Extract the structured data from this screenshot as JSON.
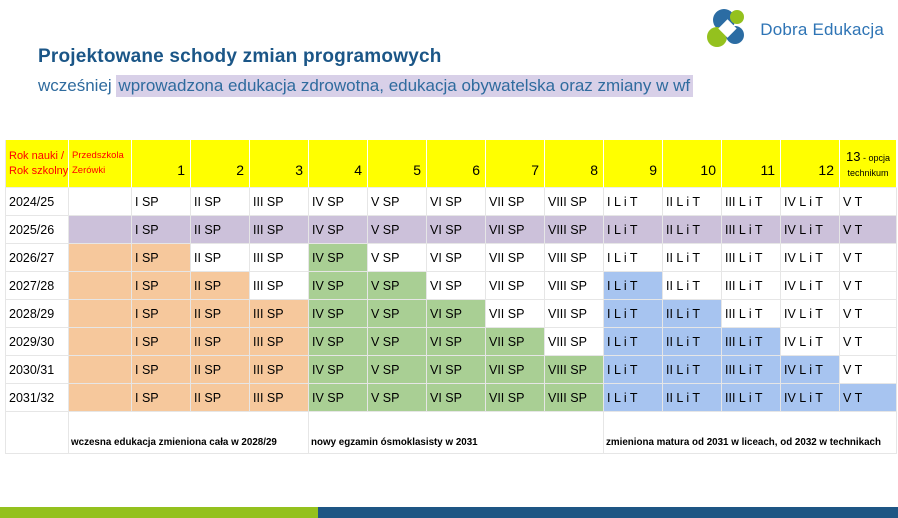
{
  "logo": {
    "text": "Dobra Edukacja"
  },
  "header": {
    "title": "Projektowane schody zmian programowych",
    "subtitle_prefix": "wcześniej ",
    "subtitle_highlight": "wprowadzona edukacja zdrowotna, edukacja obywatelska oraz zmiany w wf"
  },
  "colors": {
    "yellow": "#FFFF00",
    "header_text_red": "#FF0000",
    "orange": "#F6C89C",
    "green": "#A9CF94",
    "blue": "#A7C4F0",
    "purple": "#CCC1DA",
    "highlight_purple": "#D8D0E8",
    "title_blue": "#1B5687",
    "subtitle_blue": "#2F6B9E",
    "logo_blue": "#2B6CA3",
    "logo_green": "#94C11E",
    "logo_text_blue": "#2E74B5",
    "footer_green": "#94C11E",
    "footer_blue": "#1E5684"
  },
  "table": {
    "corner_lines": [
      "Rok nauki /",
      "Rok szkolny"
    ],
    "preschool_lines": [
      "Przedszkola",
      "Zerówki"
    ],
    "grade_numbers": [
      "1",
      "2",
      "3",
      "4",
      "5",
      "6",
      "7",
      "8",
      "9",
      "10",
      "11",
      "12"
    ],
    "col13": {
      "number": "13",
      "suffix": "- opcja",
      "line2": "technikum"
    },
    "cell_values": [
      "",
      "I SP",
      "II SP",
      "III SP",
      "IV SP",
      "V SP",
      "VI SP",
      "VII SP",
      "VIII SP",
      "I L i T",
      "II L i T",
      "III L i T",
      "IV L i T",
      "V T"
    ],
    "rows": [
      {
        "year": "2024/25",
        "fills": [
          "",
          "",
          "",
          "",
          "",
          "",
          "",
          "",
          "",
          "",
          "",
          "",
          "",
          ""
        ]
      },
      {
        "year": "2025/26",
        "fills": [
          "purple",
          "purple",
          "purple",
          "purple",
          "purple",
          "purple",
          "purple",
          "purple",
          "purple",
          "purple",
          "purple",
          "purple",
          "purple",
          "purple"
        ]
      },
      {
        "year": "2026/27",
        "fills": [
          "orange",
          "orange",
          "",
          "",
          "green",
          "",
          "",
          "",
          "",
          "",
          "",
          "",
          "",
          ""
        ]
      },
      {
        "year": "2027/28",
        "fills": [
          "orange",
          "orange",
          "orange",
          "",
          "green",
          "green",
          "",
          "",
          "",
          "blue",
          "",
          "",
          "",
          ""
        ]
      },
      {
        "year": "2028/29",
        "fills": [
          "orange",
          "orange",
          "orange",
          "orange",
          "green",
          "green",
          "green",
          "",
          "",
          "blue",
          "blue",
          "",
          "",
          ""
        ]
      },
      {
        "year": "2029/30",
        "fills": [
          "orange",
          "orange",
          "orange",
          "orange",
          "green",
          "green",
          "green",
          "green",
          "",
          "blue",
          "blue",
          "blue",
          "",
          ""
        ]
      },
      {
        "year": "2030/31",
        "fills": [
          "orange",
          "orange",
          "orange",
          "orange",
          "green",
          "green",
          "green",
          "green",
          "green",
          "blue",
          "blue",
          "blue",
          "blue",
          ""
        ]
      },
      {
        "year": "2031/32",
        "fills": [
          "orange",
          "orange",
          "orange",
          "orange",
          "green",
          "green",
          "green",
          "green",
          "green",
          "blue",
          "blue",
          "blue",
          "blue",
          "blue"
        ]
      }
    ],
    "annotations": [
      "wczesna edukacja zmieniona cała w 2028/29",
      "nowy egzamin ósmoklasisty w 2031",
      "zmieniona matura od 2031 w liceach, od 2032 w technikach"
    ]
  }
}
